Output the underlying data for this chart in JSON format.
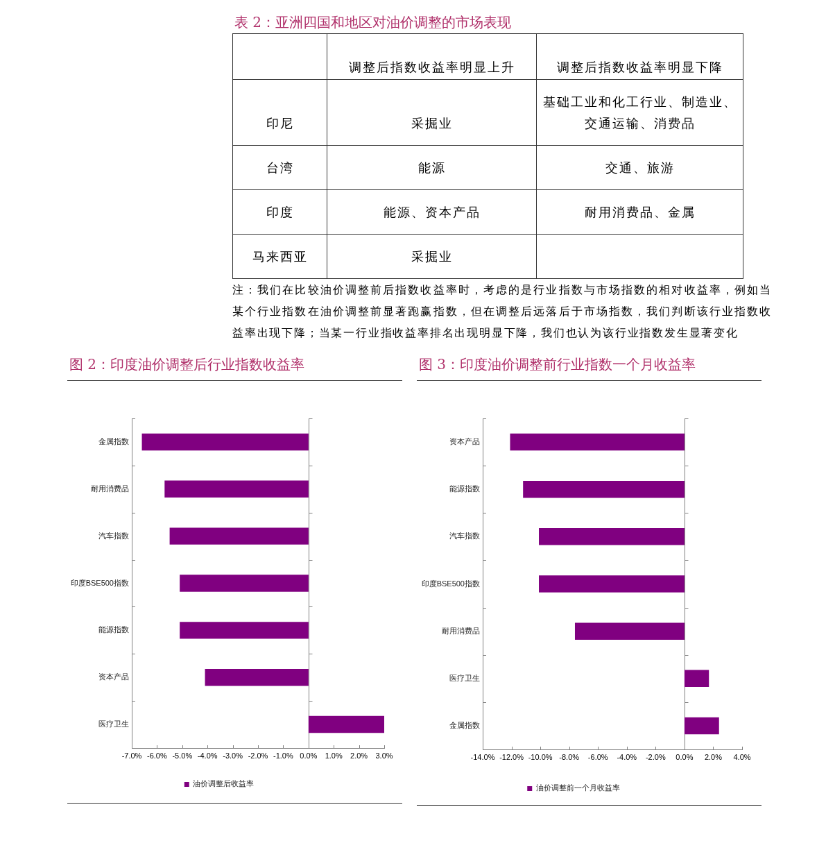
{
  "chart_data": [
    {
      "type": "other",
      "title": "表 2：亚洲四国和地区对油价调整的市场表现",
      "categories": [
        "调整后指数收益率明显上升",
        "调整后指数收益率明显下降"
      ],
      "y_categories": [
        "印尼",
        "台湾",
        "印度",
        "马来西亚"
      ],
      "cell_labels": [
        [
          "采掘业",
          "基础工业和化工行业、制造业、交通运输、消费品"
        ],
        [
          "能源",
          "交通、旅游"
        ],
        [
          "能源、资本产品",
          "耐用消费品、金属"
        ],
        [
          "采掘业",
          null
        ]
      ],
      "annotations": [
        "注：我们在比较油价调整前后指数收益率时，考虑的是行业指数与市场指数的相对收益率，例如当某个行业指数在油价调整前显著跑赢指数，但在调整后远落后于市场指数，我们判断该行业指数收益率出现下降；当某一行业指收益率排名出现明显下降，我们也认为该行业指数发生显著变化"
      ]
    },
    {
      "type": "bar",
      "title": "图 2：印度油价调整后行业指数收益率",
      "orientation": "horizontal",
      "categories": [
        "金属指数",
        "耐用消费品",
        "汽车指数",
        "印度BSE500指数",
        "能源指数",
        "资本产品",
        "医疗卫生"
      ],
      "series": [
        {
          "name": "油价调整后收益率",
          "color": "#800080",
          "values": [
            -6.6,
            -5.7,
            -5.5,
            -5.1,
            -5.1,
            -4.1,
            3.0
          ]
        }
      ],
      "xlim": [
        -7,
        3
      ],
      "xticks": [
        {
          "value": -7,
          "label": "-7.0%"
        },
        {
          "value": -6,
          "label": "-6.0%"
        },
        {
          "value": -5,
          "label": "-5.0%"
        },
        {
          "value": -4,
          "label": "-4.0%"
        },
        {
          "value": -3,
          "label": "-3.0%"
        },
        {
          "value": -2,
          "label": "-2.0%"
        },
        {
          "value": -1,
          "label": "-1.0%"
        },
        {
          "value": 0,
          "label": "0.0%"
        },
        {
          "value": 1,
          "label": "1.0%"
        },
        {
          "value": 2,
          "label": "2.0%"
        },
        {
          "value": 3,
          "label": "3.0%"
        }
      ],
      "legend": "bottom"
    },
    {
      "type": "bar",
      "title": "图 3：印度油价调整前行业指数一个月收益率",
      "orientation": "horizontal",
      "categories": [
        "资本产品",
        "能源指数",
        "汽车指数",
        "印度BSE500指数",
        "耐用消费品",
        "医疗卫生",
        "金属指数"
      ],
      "series": [
        {
          "name": "油价调整前一个月收益率",
          "color": "#800080",
          "values": [
            -12.1,
            -11.2,
            -10.1,
            -10.1,
            -7.6,
            1.7,
            2.4
          ]
        }
      ],
      "xlim": [
        -14,
        4
      ],
      "xticks": [
        {
          "value": -14,
          "label": "-14.0%"
        },
        {
          "value": -12,
          "label": "-12.0%"
        },
        {
          "value": -10,
          "label": "-10.0%"
        },
        {
          "value": -8,
          "label": "-8.0%"
        },
        {
          "value": -6,
          "label": "-6.0%"
        },
        {
          "value": -4,
          "label": "-4.0%"
        },
        {
          "value": -2,
          "label": "-2.0%"
        },
        {
          "value": 0,
          "label": "0.0%"
        },
        {
          "value": 2,
          "label": "2.0%"
        },
        {
          "value": 4,
          "label": "4.0%"
        }
      ],
      "legend": "bottom"
    }
  ]
}
